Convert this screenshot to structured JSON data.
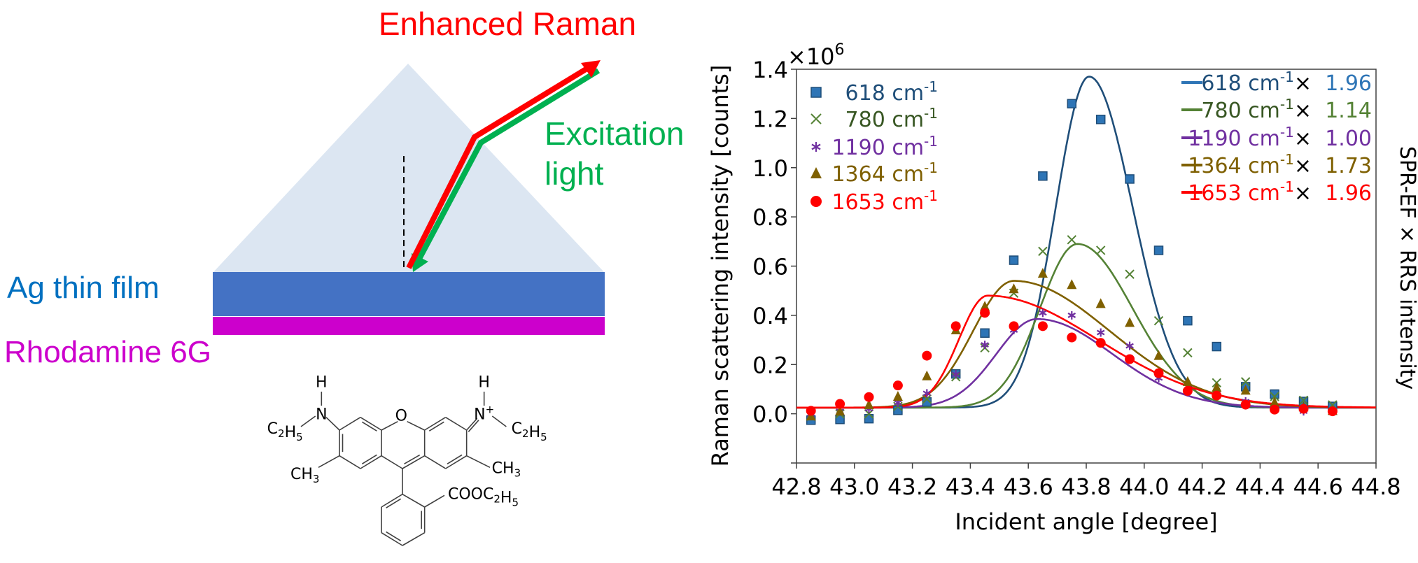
{
  "diagram": {
    "enhanced_raman_label": "Enhanced Raman",
    "excitation_label_line1": "Excitation",
    "excitation_label_line2": "light",
    "ag_film_label": "Ag thin film",
    "rhodamine_label": "Rhodamine 6G",
    "colors": {
      "prism": "#dce6f2",
      "ag_film": "#4472c4",
      "rhodamine": "#cc00cc",
      "raman_arrow": "#ff0000",
      "excitation_arrow": "#00b050",
      "ag_label": "#0070c0",
      "rhodamine_label": "#cc00cc"
    },
    "molecule": {
      "name": "Rhodamine 6G",
      "labels": {
        "o": "O",
        "h_left": "H",
        "n_left": "N",
        "h_right": "H",
        "n_right": "N",
        "n_right_charge": "+",
        "ethyl_left_c": "C",
        "ethyl_left_c_sub": "2",
        "ethyl_left_h": "H",
        "ethyl_left_h_sub": "5",
        "ethyl_right_c": "C",
        "ethyl_right_c_sub": "2",
        "ethyl_right_h": "H",
        "ethyl_right_h_sub": "5",
        "methyl_left": "CH",
        "methyl_left_sub": "3",
        "methyl_right": "CH",
        "methyl_right_sub": "3",
        "ester": "COOC",
        "ester_sub1": "2",
        "ester_h": "H",
        "ester_sub2": "5"
      }
    }
  },
  "chart_data": {
    "type": "scatter",
    "title": "",
    "xlabel": "Incident angle [degree]",
    "ylabel": "Raman scattering intensity [counts]",
    "ylabel_right": "SPR-EF × RRS intensity",
    "y_multiplier": "×10",
    "y_multiplier_exp": "6",
    "xlim": [
      42.8,
      44.8
    ],
    "ylim": [
      -0.2,
      1.4
    ],
    "xticks": [
      "42.8",
      "43.0",
      "43.2",
      "43.4",
      "43.6",
      "43.8",
      "44.0",
      "44.2",
      "44.4",
      "44.6",
      "44.8"
    ],
    "yticks": [
      "0.0",
      "0.2",
      "0.4",
      "0.6",
      "0.8",
      "1.0",
      "1.2",
      "1.4"
    ],
    "grid": false,
    "legend_markers_position": "top-left",
    "legend_lines_position": "top-right",
    "x": [
      42.85,
      42.95,
      43.05,
      43.15,
      43.25,
      43.35,
      43.45,
      43.55,
      43.65,
      43.75,
      43.85,
      43.95,
      44.05,
      44.15,
      44.25,
      44.35,
      44.45,
      44.55,
      44.65
    ],
    "series": [
      {
        "name": "618 cm-1",
        "label_num": "618",
        "label_unit": "cm",
        "label_sup": "-1",
        "marker": "square",
        "marker_color": "#2e75b6",
        "marker_edge": "#1f4e79",
        "text_color": "#1f4e79",
        "line_color": "#1f4e79",
        "legend_line_color": "#2e75b6",
        "factor": "1.96",
        "factor_color": "#2e75b6",
        "values": [
          -0.026,
          -0.023,
          -0.02,
          0.014,
          0.048,
          0.162,
          0.328,
          0.624,
          0.966,
          1.26,
          1.196,
          0.954,
          0.664,
          0.378,
          0.273,
          0.11,
          0.08,
          0.05,
          0.03
        ],
        "fit": {
          "peak_x": 43.81,
          "peak_y": 1.37,
          "left_width": 0.115,
          "right_width": 0.15
        }
      },
      {
        "name": "780 cm-1",
        "label_num": "780",
        "label_unit": "cm",
        "label_sup": "-1",
        "marker": "x",
        "marker_color": "#548235",
        "marker_edge": "#548235",
        "text_color": "#385723",
        "line_color": "#548235",
        "legend_line_color": "#548235",
        "factor": "1.14",
        "factor_color": "#548235",
        "values": [
          -0.01,
          0.0,
          0.0,
          0.03,
          0.06,
          0.15,
          0.268,
          0.49,
          0.66,
          0.707,
          0.664,
          0.567,
          0.378,
          0.248,
          0.126,
          0.13,
          0.07,
          0.055,
          0.036
        ],
        "fit": {
          "peak_x": 43.77,
          "peak_y": 0.69,
          "left_width": 0.13,
          "right_width": 0.19
        }
      },
      {
        "name": "1190 cm-1",
        "label_num": "1190",
        "label_unit": "cm",
        "label_sup": "-1",
        "marker": "asterisk",
        "marker_color": "#7030a0",
        "marker_edge": "#7030a0",
        "text_color": "#7030a0",
        "line_color": "#7030a0",
        "legend_line_color": "#7030a0",
        "factor": "1.00",
        "factor_color": "#7030a0",
        "values": [
          0.0,
          0.01,
          0.02,
          0.045,
          0.083,
          0.16,
          0.28,
          0.34,
          0.41,
          0.4,
          0.33,
          0.276,
          0.145,
          0.088,
          0.083,
          0.05,
          0.03,
          0.01,
          0.015
        ],
        "fit": {
          "peak_x": 43.63,
          "peak_y": 0.385,
          "left_width": 0.14,
          "right_width": 0.26
        }
      },
      {
        "name": "1364 cm-1",
        "label_num": "1364",
        "label_unit": "cm",
        "label_sup": "-1",
        "marker": "triangle",
        "marker_color": "#7f6000",
        "marker_edge": "#7f6000",
        "text_color": "#7f6000",
        "line_color": "#7f6000",
        "legend_line_color": "#7f6000",
        "factor": "1.73",
        "factor_color": "#7f6000",
        "values": [
          -0.01,
          0.01,
          0.036,
          0.07,
          0.153,
          0.34,
          0.436,
          0.507,
          0.57,
          0.524,
          0.447,
          0.37,
          0.236,
          0.13,
          0.107,
          0.095,
          0.046,
          0.027,
          0.012
        ],
        "fit": {
          "peak_x": 43.55,
          "peak_y": 0.54,
          "left_width": 0.14,
          "right_width": 0.33
        }
      },
      {
        "name": "1653 cm-1",
        "label_num": "1653",
        "label_unit": "cm",
        "label_sup": "-1",
        "marker": "circle",
        "marker_color": "#ff0000",
        "marker_edge": "#ff0000",
        "text_color": "#ff0000",
        "line_color": "#ff0000",
        "legend_line_color": "#ff0000",
        "factor": "1.96",
        "factor_color": "#ff0000",
        "values": [
          0.012,
          0.04,
          0.068,
          0.115,
          0.236,
          0.356,
          0.41,
          0.356,
          0.356,
          0.31,
          0.288,
          0.222,
          0.165,
          0.093,
          0.074,
          0.037,
          0.017,
          0.02,
          0.01
        ],
        "fit": {
          "peak_x": 43.46,
          "peak_y": 0.48,
          "left_width": 0.1,
          "right_width": 0.38
        }
      }
    ],
    "fit_baseline": 0.025,
    "legend_times": "×"
  }
}
